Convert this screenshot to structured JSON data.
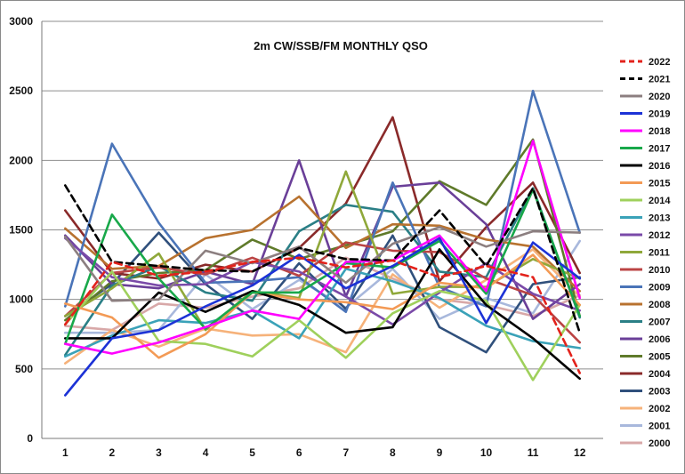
{
  "chart_data": {
    "type": "line",
    "title": "2m CW/SSB/FM  MONTHLY QSO",
    "xlabel": "",
    "ylabel": "",
    "categories": [
      "1",
      "2",
      "3",
      "4",
      "5",
      "6",
      "7",
      "8",
      "9",
      "10",
      "11",
      "12"
    ],
    "ylim": [
      0,
      3000
    ],
    "yticks": [
      "0",
      "500",
      "1000",
      "1500",
      "2000",
      "2500",
      "3000"
    ],
    "grid": "horizontal",
    "legend_position": "right",
    "series": [
      {
        "name": "2022",
        "color": "#e3221b",
        "dash": "dash",
        "values": [
          820,
          1270,
          1170,
          1200,
          1270,
          1300,
          1230,
          1280,
          1160,
          1240,
          1160,
          470
        ]
      },
      {
        "name": "2021",
        "color": "#000000",
        "dash": "dash",
        "values": [
          1820,
          1270,
          1240,
          1210,
          1200,
          1370,
          1290,
          1280,
          1640,
          1240,
          1800,
          760
        ]
      },
      {
        "name": "2020",
        "color": "#8c7f80",
        "dash": "solid",
        "values": [
          1450,
          990,
          1000,
          1350,
          1260,
          1380,
          1120,
          1400,
          1520,
          1380,
          1490,
          1480
        ]
      },
      {
        "name": "2019",
        "color": "#1c32d6",
        "dash": "solid",
        "values": [
          310,
          720,
          780,
          950,
          1100,
          1320,
          1080,
          1240,
          1440,
          830,
          1410,
          1150
        ]
      },
      {
        "name": "2018",
        "color": "#ff00ff",
        "dash": "solid",
        "values": [
          680,
          610,
          690,
          800,
          920,
          860,
          1270,
          1280,
          1460,
          1060,
          2140,
          1010
        ]
      },
      {
        "name": "2017",
        "color": "#18a84a",
        "dash": "solid",
        "values": [
          680,
          1610,
          1150,
          790,
          1050,
          1050,
          1260,
          1230,
          1420,
          1040,
          1790,
          880
        ]
      },
      {
        "name": "2016",
        "color": "#000000",
        "dash": "solid",
        "values": [
          720,
          720,
          1050,
          910,
          1060,
          960,
          760,
          800,
          1360,
          960,
          720,
          430
        ]
      },
      {
        "name": "2015",
        "color": "#f39a55",
        "dash": "solid",
        "values": [
          970,
          870,
          580,
          750,
          1050,
          1000,
          980,
          930,
          1120,
          1080,
          1320,
          960
        ]
      },
      {
        "name": "2014",
        "color": "#9fd05c",
        "dash": "solid",
        "values": [
          820,
          1200,
          700,
          680,
          590,
          850,
          580,
          900,
          1060,
          990,
          420,
          960
        ]
      },
      {
        "name": "2013",
        "color": "#3aa2b8",
        "dash": "solid",
        "values": [
          590,
          740,
          850,
          830,
          920,
          720,
          1220,
          1130,
          1010,
          810,
          700,
          650
        ]
      },
      {
        "name": "2012",
        "color": "#7a4aa8",
        "dash": "solid",
        "values": [
          1440,
          1160,
          1100,
          1110,
          1270,
          1200,
          1020,
          820,
          1050,
          1260,
          1040,
          920
        ]
      },
      {
        "name": "2011",
        "color": "#8fa83a",
        "dash": "solid",
        "values": [
          880,
          1080,
          1330,
          780,
          1060,
          1010,
          1920,
          1040,
          1090,
          1090,
          1290,
          1150
        ]
      },
      {
        "name": "2010",
        "color": "#bb4444",
        "dash": "solid",
        "values": [
          880,
          1190,
          1230,
          1180,
          1300,
          1170,
          1410,
          1350,
          1340,
          1150,
          1030,
          690
        ]
      },
      {
        "name": "2009",
        "color": "#4a74b8",
        "dash": "solid",
        "values": [
          950,
          2120,
          1550,
          1120,
          1130,
          1160,
          910,
          1840,
          1090,
          950,
          2500,
          1480
        ]
      },
      {
        "name": "2008",
        "color": "#b8722f",
        "dash": "solid",
        "values": [
          1510,
          1220,
          1240,
          1440,
          1500,
          1740,
          1370,
          1540,
          1530,
          1430,
          1380,
          1060
        ]
      },
      {
        "name": "2007",
        "color": "#2a7f86",
        "dash": "solid",
        "values": [
          600,
          1100,
          1240,
          1050,
          990,
          1490,
          1680,
          1630,
          1200,
          1160,
          1800,
          870
        ]
      },
      {
        "name": "2006",
        "color": "#6a3f98",
        "dash": "solid",
        "values": [
          1460,
          1110,
          1080,
          1200,
          1110,
          2000,
          1020,
          1810,
          1840,
          1540,
          860,
          1110
        ]
      },
      {
        "name": "2005",
        "color": "#5f7a2a",
        "dash": "solid",
        "values": [
          850,
          1130,
          1190,
          1210,
          1430,
          1290,
          1390,
          1490,
          1850,
          1680,
          2150,
          880
        ]
      },
      {
        "name": "2004",
        "color": "#8a2a2a",
        "dash": "solid",
        "values": [
          1640,
          1190,
          1150,
          1250,
          1200,
          1370,
          1690,
          2310,
          1130,
          1520,
          1840,
          1190
        ]
      },
      {
        "name": "2003",
        "color": "#30507c",
        "dash": "solid",
        "values": [
          880,
          1110,
          1480,
          1110,
          860,
          1260,
          930,
          1460,
          800,
          620,
          1110,
          1160
        ]
      },
      {
        "name": "2002",
        "color": "#f6b27a",
        "dash": "solid",
        "values": [
          540,
          780,
          660,
          790,
          740,
          750,
          620,
          1180,
          940,
          1140,
          1360,
          1020
        ]
      },
      {
        "name": "2001",
        "color": "#a8b8dc",
        "dash": "solid",
        "values": [
          760,
          760,
          780,
          1180,
          930,
          1140,
          940,
          1220,
          860,
          1010,
          900,
          1420
        ]
      },
      {
        "name": "2000",
        "color": "#d8a8a8",
        "dash": "solid",
        "values": [
          810,
          780,
          970,
          940,
          1020,
          1080,
          1300,
          1150,
          1000,
          960,
          880,
          1030
        ]
      }
    ]
  }
}
